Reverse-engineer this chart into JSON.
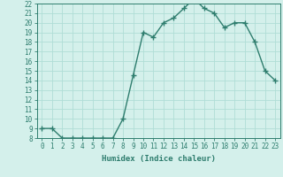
{
  "x": [
    0,
    1,
    2,
    3,
    4,
    5,
    6,
    7,
    8,
    9,
    10,
    11,
    12,
    13,
    14,
    15,
    16,
    17,
    18,
    19,
    20,
    21,
    22,
    23
  ],
  "y": [
    9,
    9,
    8,
    8,
    8,
    8,
    8,
    8,
    10,
    14.5,
    19,
    18.5,
    20,
    20.5,
    21.5,
    22.5,
    21.5,
    21,
    19.5,
    20,
    20,
    18,
    15,
    14
  ],
  "line_color": "#2e7d6e",
  "marker": "+",
  "bg_color": "#d4f0eb",
  "grid_color": "#b0ddd6",
  "xlabel": "Humidex (Indice chaleur)",
  "ylim": [
    8,
    22
  ],
  "xlim": [
    -0.5,
    23.5
  ],
  "yticks": [
    8,
    9,
    10,
    11,
    12,
    13,
    14,
    15,
    16,
    17,
    18,
    19,
    20,
    21,
    22
  ],
  "xticks": [
    0,
    1,
    2,
    3,
    4,
    5,
    6,
    7,
    8,
    9,
    10,
    11,
    12,
    13,
    14,
    15,
    16,
    17,
    18,
    19,
    20,
    21,
    22,
    23
  ],
  "tick_color": "#2e7d6e",
  "label_color": "#2e7d6e",
  "axis_color": "#2e7d6e",
  "tick_fontsize": 5.5,
  "xlabel_fontsize": 6.5,
  "linewidth": 1.0,
  "markersize": 4,
  "markeredgewidth": 1.0
}
